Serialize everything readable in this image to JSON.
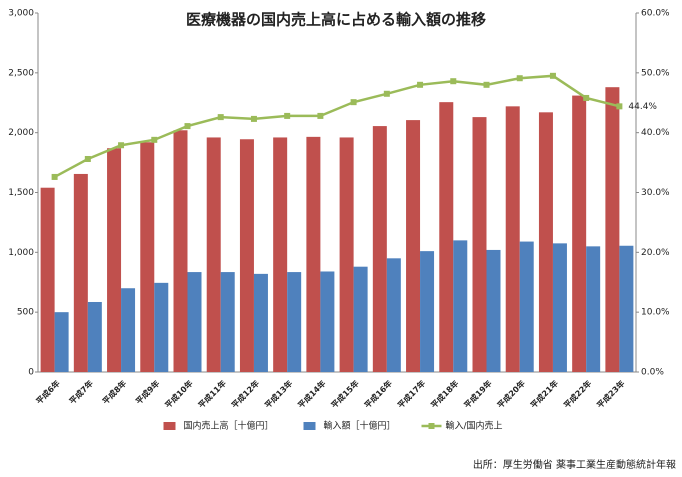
{
  "chart_data": {
    "type": "bar",
    "title": "医療機器の国内売上高に占める輸入額の推移",
    "categories": [
      "平成6年",
      "平成7年",
      "平成8年",
      "平成9年",
      "平成10年",
      "平成11年",
      "平成12年",
      "平成13年",
      "平成14年",
      "平成15年",
      "平成16年",
      "平成17年",
      "平成18年",
      "平成19年",
      "平成20年",
      "平成21年",
      "平成22年",
      "平成23年"
    ],
    "series": [
      {
        "name": "国内売上高［十億円］",
        "color": "#c0504d",
        "type": "bar",
        "values": [
          1540,
          1655,
          1870,
          1920,
          2020,
          1960,
          1945,
          1960,
          1965,
          1960,
          2055,
          2105,
          2255,
          2130,
          2220,
          2170,
          2310,
          2380
        ]
      },
      {
        "name": "輸入額［十億円］",
        "color": "#4f81bd",
        "type": "bar",
        "values": [
          500,
          585,
          700,
          745,
          835,
          835,
          820,
          835,
          840,
          880,
          950,
          1010,
          1100,
          1020,
          1090,
          1075,
          1050,
          1055
        ]
      },
      {
        "name": "輸入/国内売上",
        "color": "#9bbb59",
        "type": "line",
        "axis": "y2",
        "values": [
          32.6,
          35.6,
          37.9,
          38.8,
          41.1,
          42.6,
          42.3,
          42.8,
          42.8,
          45.1,
          46.5,
          48.0,
          48.6,
          48.0,
          49.1,
          49.5,
          45.8,
          44.4
        ],
        "value_labels": [
          null,
          null,
          null,
          null,
          null,
          null,
          null,
          null,
          null,
          null,
          null,
          null,
          null,
          null,
          null,
          null,
          null,
          "44.4%"
        ]
      }
    ],
    "ylim": [
      0,
      3000
    ],
    "yticks": [
      0,
      {
        "value": 500,
        "label": "500"
      },
      {
        "value": 1000,
        "label": "1,000"
      },
      {
        "value": 1500,
        "label": "1,500"
      },
      {
        "value": 2000,
        "label": "2,000"
      },
      {
        "value": 2500,
        "label": "2,500"
      },
      {
        "value": 3000,
        "label": "3,000"
      }
    ],
    "y2lim": [
      0,
      60
    ],
    "y2ticks": [
      {
        "value": 0,
        "label": "0.0%"
      },
      {
        "value": 10,
        "label": "10.0%"
      },
      {
        "value": 20,
        "label": "20.0%"
      },
      {
        "value": 30,
        "label": "30.0%"
      },
      {
        "value": 40,
        "label": "40.0%"
      },
      {
        "value": 50,
        "label": "50.0%"
      },
      {
        "value": 60,
        "label": "60.0%"
      }
    ],
    "legend": "bottom",
    "source": "出所：厚生労働省 薬事工業生産動態統計年報"
  }
}
